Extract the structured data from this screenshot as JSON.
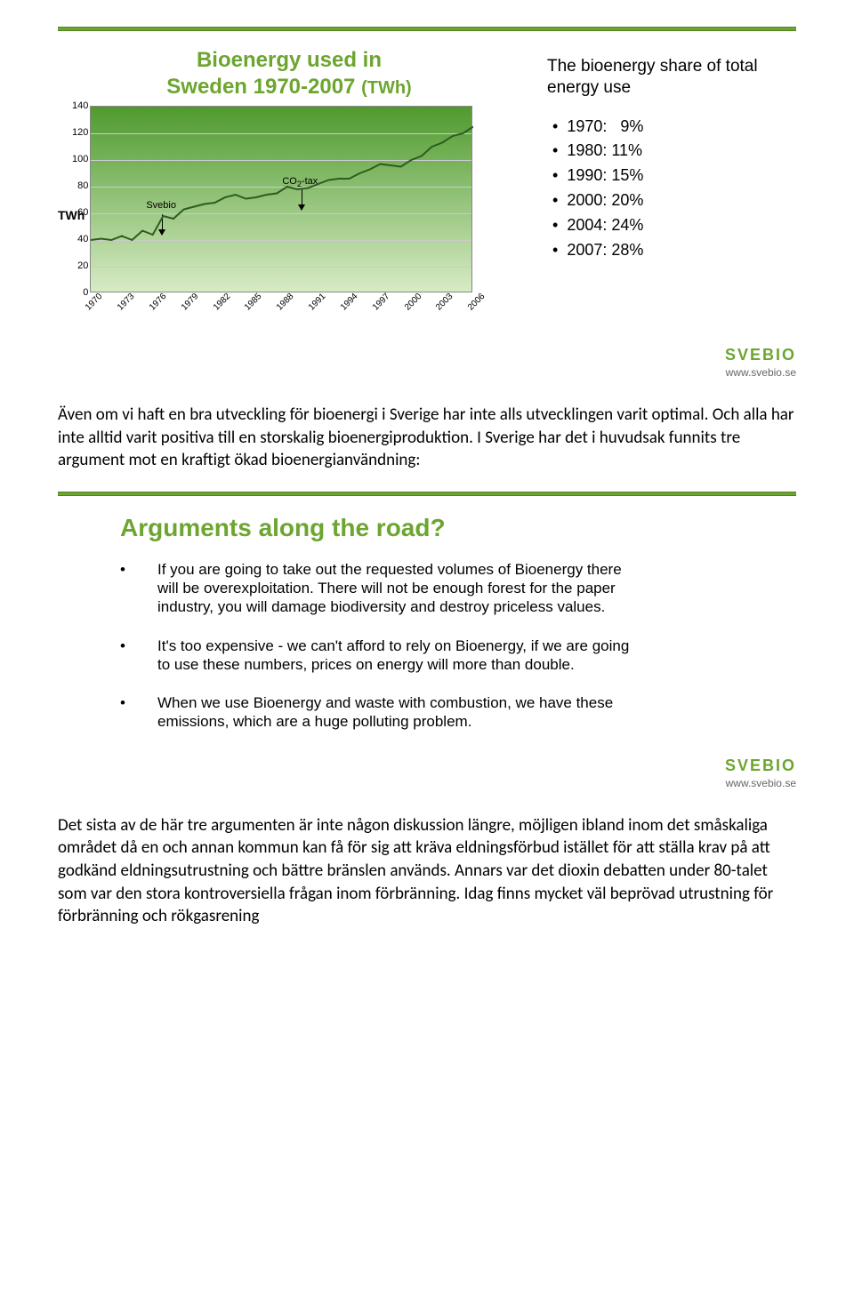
{
  "slide1": {
    "title_line1": "Bioenergy used in",
    "title_line2": "Sweden 1970-2007",
    "title_unit": "(TWh)",
    "chart": {
      "type": "line",
      "y_label": "TWh",
      "ylim": [
        0,
        140
      ],
      "y_ticks": [
        0,
        20,
        40,
        60,
        80,
        100,
        120,
        140
      ],
      "x_categories": [
        "1970",
        "1973",
        "1976",
        "1979",
        "1982",
        "1985",
        "1988",
        "1991",
        "1994",
        "1997",
        "2000",
        "2003",
        "2006"
      ],
      "series_color": "#2e5c1e",
      "line_width": 2,
      "background_top": "#4f9a2e",
      "background_bottom": "#d7ebc5",
      "grid_color": "#cccccc",
      "border_color": "#888888",
      "values": [
        40,
        41,
        40,
        43,
        40,
        47,
        44,
        58,
        56,
        63,
        65,
        67,
        68,
        72,
        74,
        71,
        72,
        74,
        75,
        80,
        78,
        79,
        82,
        85,
        86,
        86,
        90,
        93,
        97,
        96,
        95,
        100,
        103,
        110,
        113,
        118,
        120,
        125
      ],
      "annotations": {
        "svebio_label": "Svebio",
        "co2_label": "CO",
        "co2_sub": "2",
        "co2_after": "-tax"
      }
    },
    "right_title": "The bioenergy share of total energy use",
    "share_bullets": [
      "1970:   9%",
      "1980: 11%",
      "1990: 15%",
      "2000: 20%",
      "2004: 24%",
      "2007: 28%"
    ],
    "logo": "SVEBIO",
    "url": "www.svebio.se"
  },
  "para1": "Även om vi haft en bra utveckling för bioenergi i Sverige har inte alls utvecklingen varit optimal. Och alla har inte alltid varit positiva till en storskalig bioenergiproduktion. I Sverige har det i huvudsak funnits tre argument mot en kraftigt ökad bioenergianvändning:",
  "slide2": {
    "title": "Arguments along the road?",
    "items": [
      "If you are going to take out the requested volumes of Bioenergy there will be overexploitation. There will not be enough forest for the paper industry, you will damage biodiversity and destroy priceless values.",
      "It's too expensive - we can't afford to rely on Bioenergy, if we are going to use these numbers, prices on energy will more than double.",
      "When we use Bioenergy and waste with combustion, we have these emissions, which are a huge polluting problem."
    ],
    "logo": "SVEBIO",
    "url": "www.svebio.se"
  },
  "para2": "Det sista av de här tre argumenten är inte någon diskussion längre, möjligen ibland inom det småskaliga området då en och annan kommun kan få för sig att kräva eldningsförbud istället för att ställa krav på att godkänd eldningsutrustning och bättre bränslen används. Annars var det dioxin debatten under 80-talet som var den stora kontroversiella frågan inom förbränning. Idag finns mycket väl beprövad utrustning för förbränning och rökgasrening"
}
